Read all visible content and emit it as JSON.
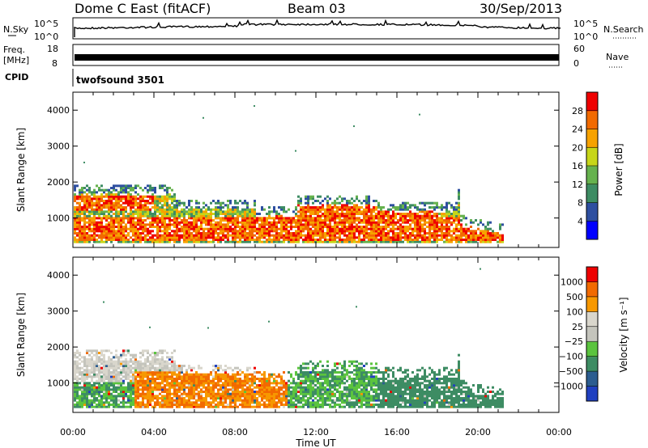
{
  "header": {
    "radar": "Dome C East (fitACF)",
    "beam": "Beam 03",
    "date": "30/Sep/2013"
  },
  "top_panels": {
    "nsky": {
      "label": "N.Sky",
      "ticks_left": [
        "10^5",
        "10^0"
      ],
      "ticks_right": [
        "10^5",
        "10^0"
      ],
      "right_label": "N.Search"
    },
    "freq": {
      "label_line1": "Freq.",
      "label_line2": "[MHz]",
      "ticks_left": [
        "18",
        "8"
      ],
      "ticks_right": [
        "60",
        "0"
      ],
      "right_label": "Nave"
    },
    "cpid": {
      "label": "CPID",
      "text": "twofsound 3501"
    }
  },
  "x_axis": {
    "title": "Time UT",
    "tick_labels": [
      "00:00",
      "04:00",
      "08:00",
      "12:00",
      "16:00",
      "20:00",
      "00:00"
    ]
  },
  "colors": {
    "power": [
      "#0000ff",
      "#2e4fa0",
      "#3d8c63",
      "#66b24e",
      "#c7d619",
      "#f7a200",
      "#f26a00",
      "#ef0000"
    ],
    "velocity": [
      "#ee0000",
      "#f26a00",
      "#f79800",
      "#d9d6cc",
      "#c4c4bc",
      "#5bc43e",
      "#3d8c63",
      "#2c5d90",
      "#2040c0"
    ]
  },
  "chart_data": [
    {
      "type": "heatmap",
      "title": "Power",
      "ylabel": "Slant Range [km]",
      "xlabel": "",
      "ylim": [
        180,
        4500
      ],
      "yticks": [
        "1000",
        "2000",
        "3000",
        "4000"
      ],
      "colorbar_label": "Power [dB]",
      "colorbar_ticks": [
        "4",
        "8",
        "12",
        "16",
        "20",
        "24",
        "28"
      ],
      "range_km": [
        180,
        4500
      ],
      "x_hours": [
        0,
        24
      ]
    },
    {
      "type": "heatmap",
      "title": "Velocity",
      "ylabel": "Slant Range [km]",
      "xlabel": "Time UT",
      "ylim": [
        180,
        4500
      ],
      "yticks": [
        "1000",
        "2000",
        "3000",
        "4000"
      ],
      "colorbar_label": "Velocity [m s⁻¹]",
      "colorbar_ticks": [
        "1000",
        "500",
        "100",
        "25",
        "−25",
        "−100",
        "−500",
        "−1000"
      ],
      "range_km": [
        180,
        4500
      ],
      "x_hours": [
        0,
        24
      ]
    }
  ]
}
